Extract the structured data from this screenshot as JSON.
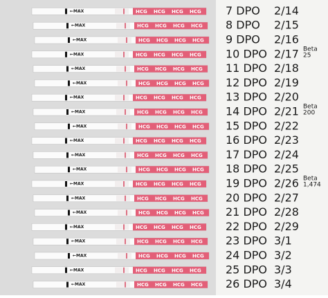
{
  "strip_text": {
    "max": "←MAX",
    "brand": "HCG"
  },
  "rows": [
    {
      "day": "7 DPO",
      "date": "2/14"
    },
    {
      "day": "8 DPO",
      "date": "2/15"
    },
    {
      "day": "9 DPO",
      "date": "2/16"
    },
    {
      "day": "10 DPO",
      "date": "2/17",
      "note": [
        "Beta",
        "25"
      ]
    },
    {
      "day": "11 DPO",
      "date": "2/18"
    },
    {
      "day": "12 DPO",
      "date": "2/19"
    },
    {
      "day": "13 DPO",
      "date": "2/20"
    },
    {
      "day": "14 DPO",
      "date": "2/21",
      "note": [
        "Beta",
        "200"
      ]
    },
    {
      "day": "15 DPO",
      "date": "2/22"
    },
    {
      "day": "16 DPO",
      "date": "2/23"
    },
    {
      "day": "17 DPO",
      "date": "2/24"
    },
    {
      "day": "18 DPO",
      "date": "2/25"
    },
    {
      "day": "19 DPO",
      "date": "2/26",
      "note": [
        "Beta",
        "1,474"
      ]
    },
    {
      "day": "20 DPO",
      "date": "2/27"
    },
    {
      "day": "21 DPO",
      "date": "2/28"
    },
    {
      "day": "22 DPO",
      "date": "2/29"
    },
    {
      "day": "23 DPO",
      "date": "3/1"
    },
    {
      "day": "24 DPO",
      "date": "3/2"
    },
    {
      "day": "25 DPO",
      "date": "3/3"
    },
    {
      "day": "26 DPO",
      "date": "3/4"
    }
  ]
}
